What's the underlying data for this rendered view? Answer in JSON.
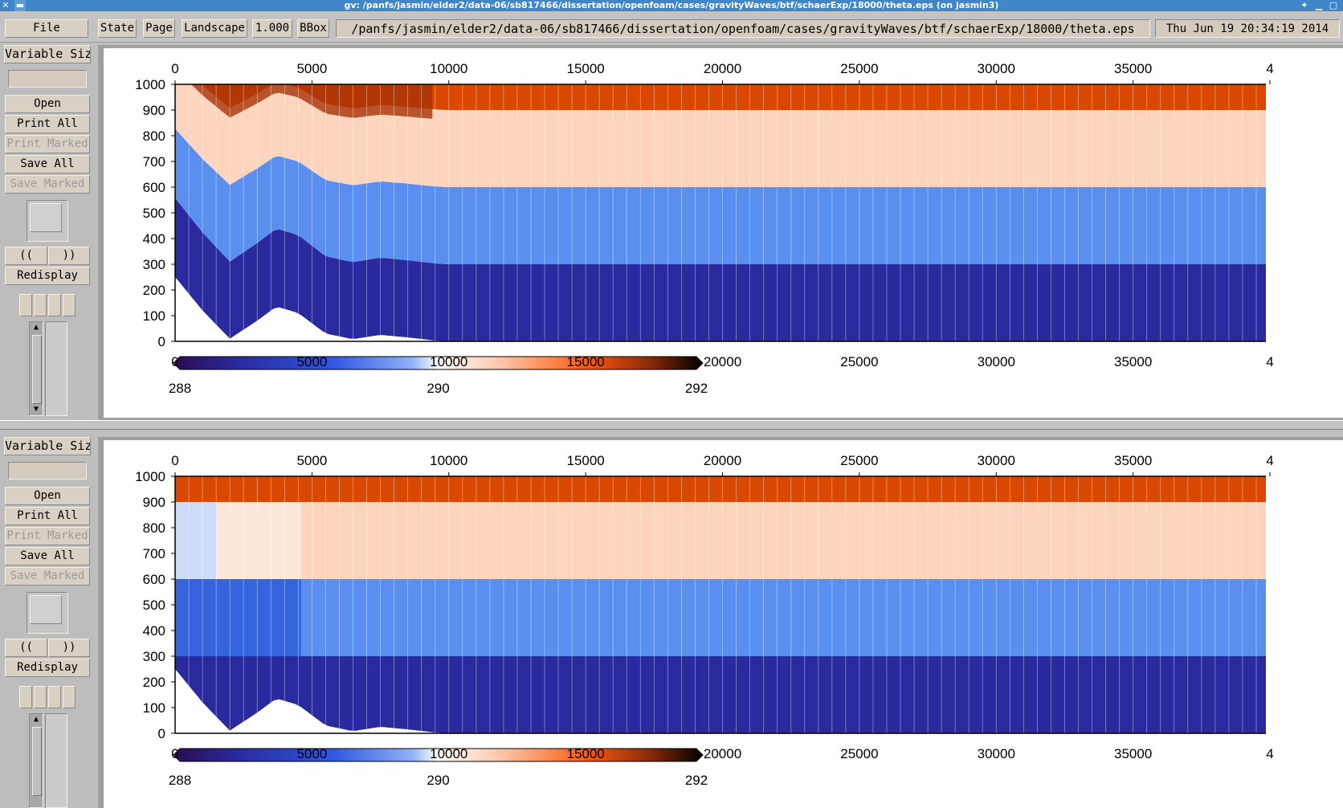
{
  "window": {
    "title": "gv: /panfs/jasmin/elder2/data-06/sb817466/dissertation/openfoam/cases/gravityWaves/btf/schaerExp/18000/theta.eps (on jasmin3)"
  },
  "toolbar": {
    "file": "File",
    "state": "State",
    "page": "Page",
    "orientation": "Landscape",
    "scale": "1.000",
    "bbox": "BBox",
    "path": "/panfs/jasmin/elder2/data-06/sb817466/dissertation/openfoam/cases/gravityWaves/btf/schaerExp/18000/theta.eps",
    "date": "Thu Jun 19 20:34:19 2014"
  },
  "sidebar": {
    "variable_size": "Variable Size",
    "open": "Open",
    "print_all": "Print All",
    "print_marked": "Print Marked",
    "save_all": "Save All",
    "save_marked": "Save Marked",
    "prev": "((",
    "next": "))",
    "redisplay": "Redisplay"
  },
  "colors": {
    "dark_blue": "#2a2a9e",
    "mid_blue": "#5a8ff0",
    "peach": "#fdd4bd",
    "orange": "#d94800",
    "dark_orange": "#a83208"
  },
  "chart_data": [
    {
      "type": "heatmap",
      "title": "",
      "x_ticks": [
        "0",
        "5000",
        "10000",
        "15000",
        "20000",
        "25000",
        "30000",
        "35000",
        "4"
      ],
      "y_ticks": [
        "1000",
        "900",
        "800",
        "700",
        "600",
        "500",
        "400",
        "300",
        "200",
        "100",
        "0"
      ],
      "xlim": [
        0,
        40000
      ],
      "ylim": [
        0,
        1000
      ],
      "colorbar": {
        "ticks": [
          "288",
          "290",
          "292"
        ],
        "range": [
          288,
          292
        ]
      },
      "levels_far_field": [
        {
          "from": 0,
          "to": 300,
          "theta_band": "288.0-288.5"
        },
        {
          "from": 300,
          "to": 600,
          "theta_band": "289.0-289.5"
        },
        {
          "from": 600,
          "to": 900,
          "theta_band": "290.5-291.0"
        },
        {
          "from": 900,
          "to": 1000,
          "theta_band": "291.0-291.5"
        }
      ],
      "terrain_x": [
        0,
        1000,
        2000,
        3000,
        3700,
        4500,
        5500,
        6500,
        7500,
        8500,
        9500,
        10000
      ],
      "terrain_h": [
        250,
        120,
        10,
        80,
        135,
        110,
        30,
        8,
        25,
        15,
        3,
        0
      ]
    },
    {
      "type": "heatmap",
      "title": "",
      "x_ticks": [
        "0",
        "5000",
        "10000",
        "15000",
        "20000",
        "25000",
        "30000",
        "35000",
        "4"
      ],
      "y_ticks": [
        "1000",
        "900",
        "800",
        "700",
        "600",
        "500",
        "400",
        "300",
        "200",
        "100",
        "0"
      ],
      "xlim": [
        0,
        40000
      ],
      "ylim": [
        0,
        1000
      ],
      "colorbar": {
        "ticks": [
          "288",
          "290",
          "292"
        ],
        "range": [
          288,
          292
        ]
      },
      "terrain_x": [
        0,
        1000,
        2000,
        3000,
        3700,
        4500,
        5500,
        6500,
        7500,
        8500,
        9500,
        10000
      ],
      "terrain_h": [
        250,
        120,
        10,
        80,
        135,
        110,
        30,
        8,
        25,
        15,
        3,
        0
      ]
    }
  ]
}
